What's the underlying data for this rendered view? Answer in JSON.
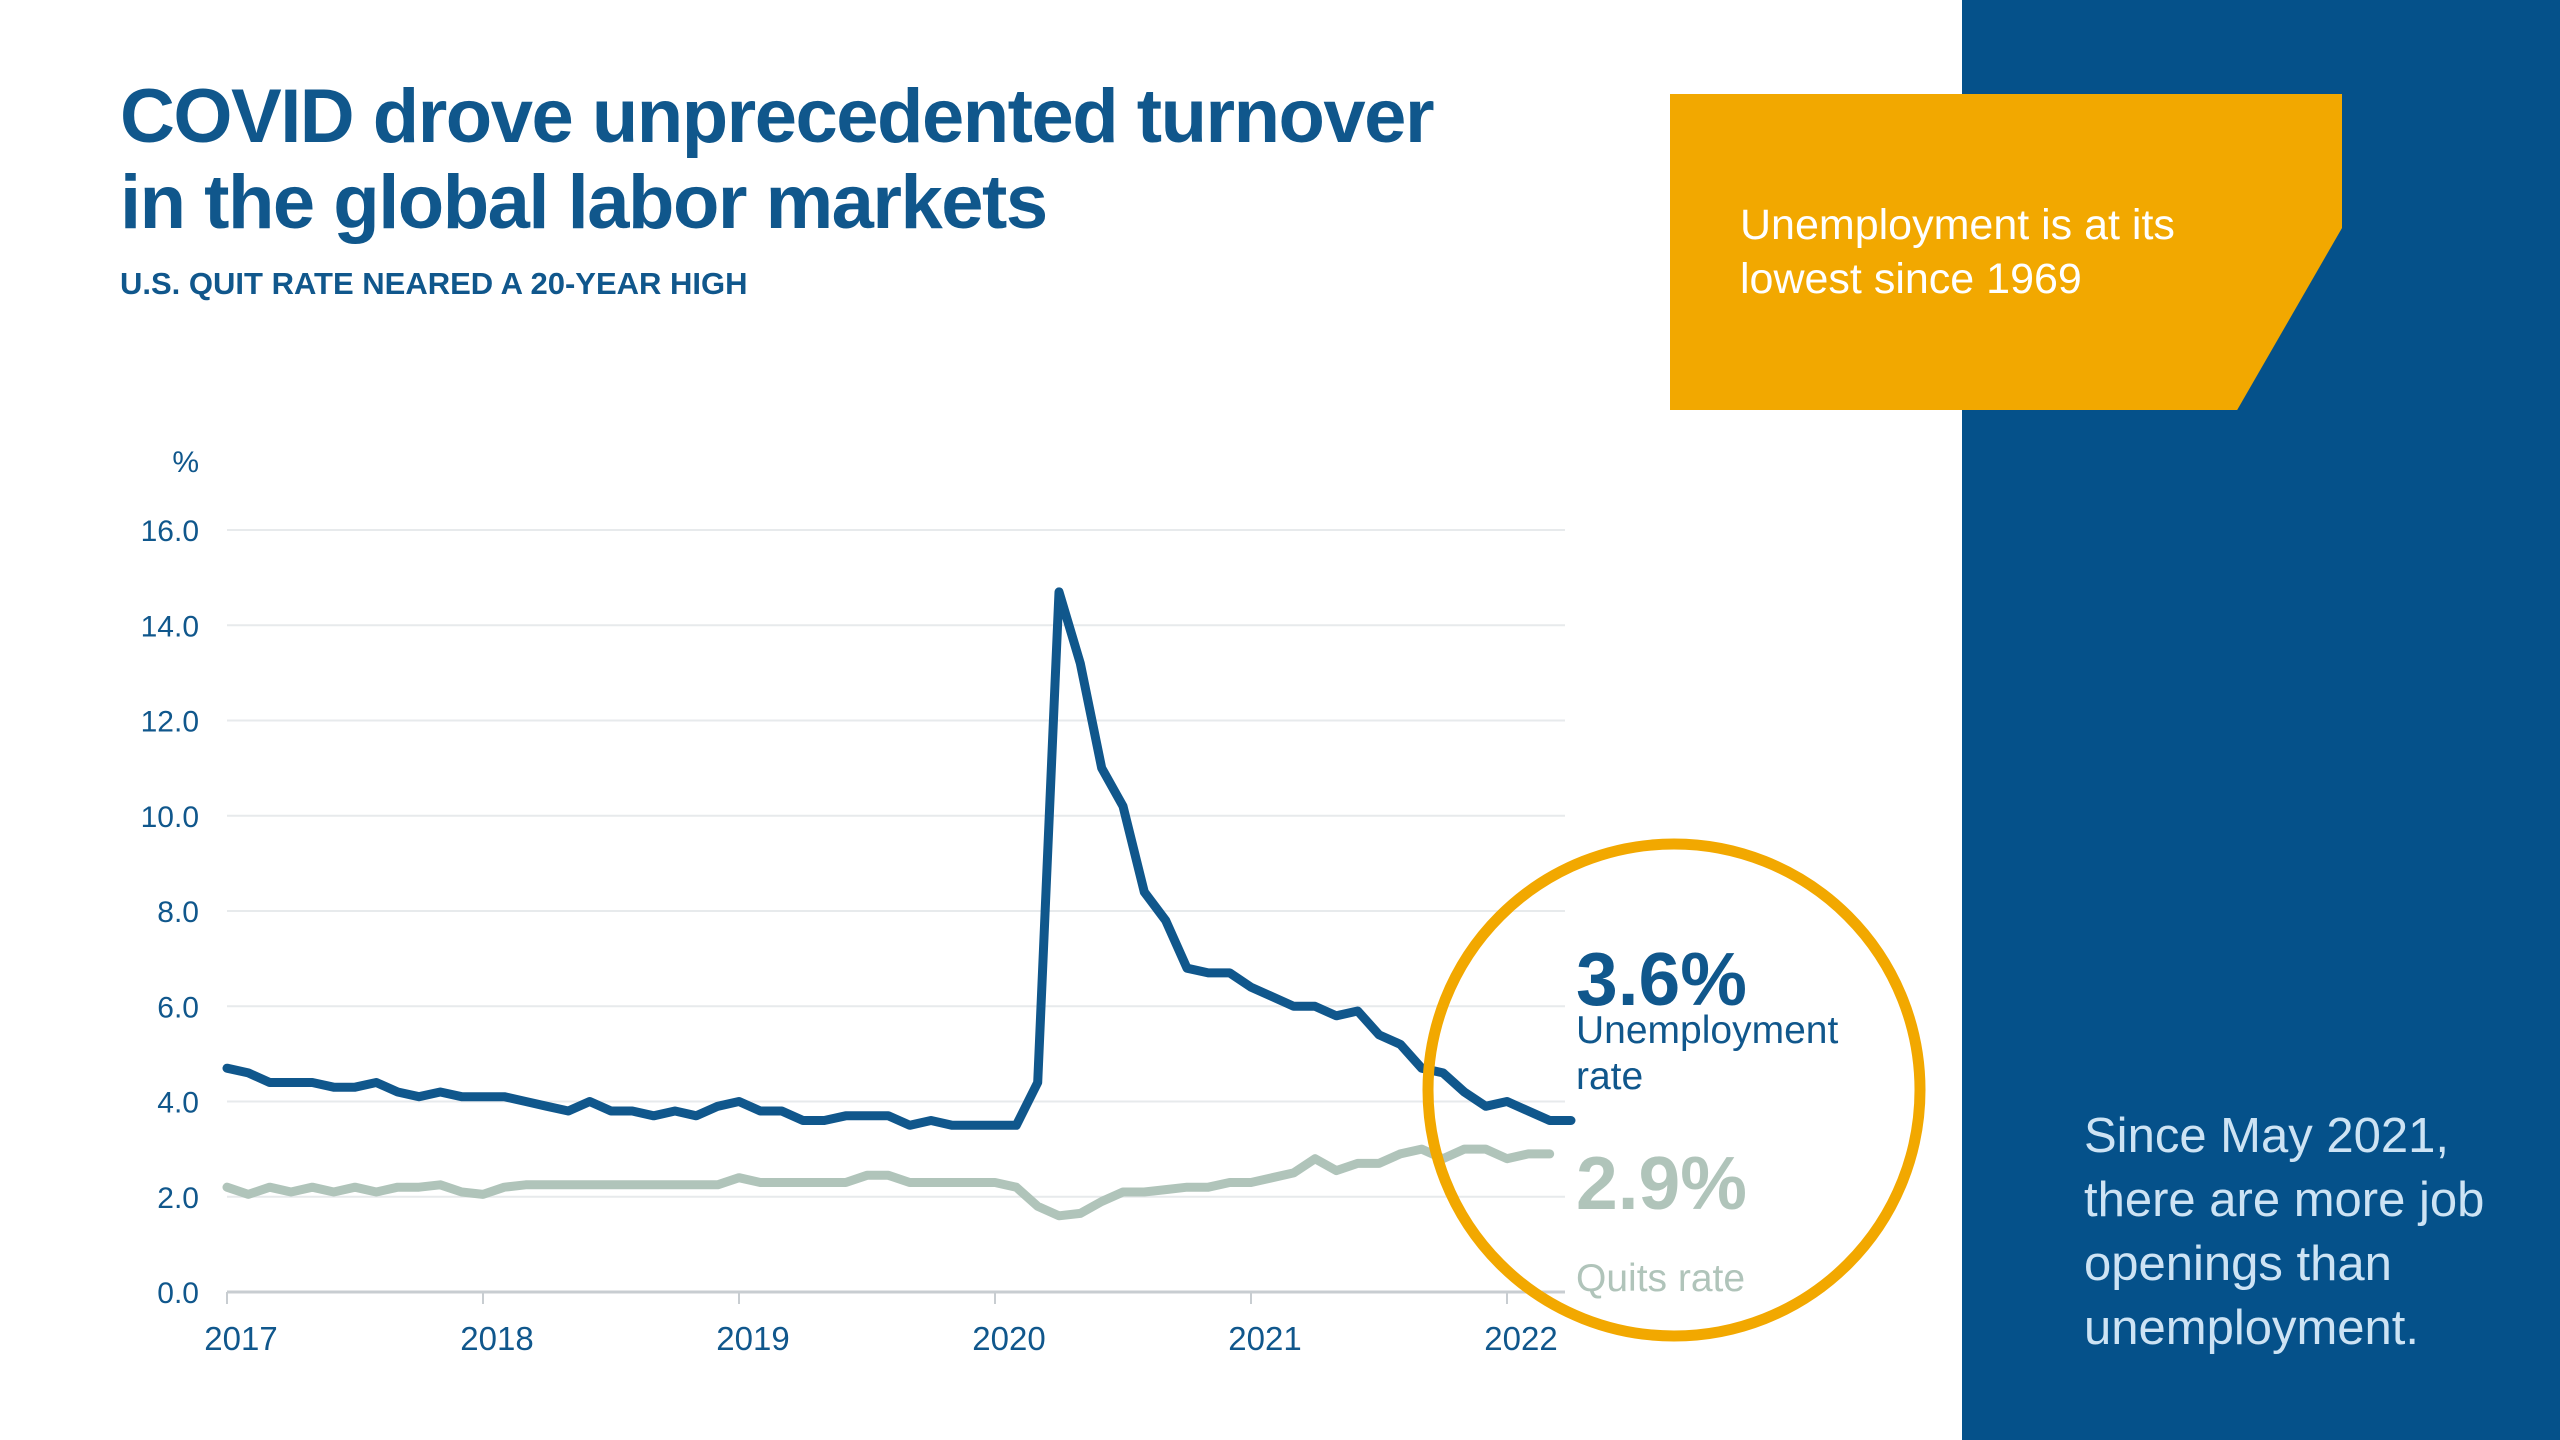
{
  "header": {
    "title_lines": [
      "COVID drove unprecedented turnover",
      "in the global labor markets"
    ],
    "subtitle": "U.S. QUIT RATE NEARED A 20-YEAR HIGH"
  },
  "callout_box": {
    "lines": [
      "Unemployment is at its",
      "lowest since 1969"
    ]
  },
  "sidebar_note": {
    "lines": [
      "Since May 2021,",
      "there are more job",
      "openings than",
      "unemployment."
    ]
  },
  "annotation_circle": {
    "unemployment_value": "3.6%",
    "unemployment_label_lines": [
      "Unemployment",
      "rate"
    ],
    "quits_value": "2.9%",
    "quits_label": "Quits rate"
  },
  "colors": {
    "brand_blue": "#10578C",
    "sidebar_blue": "#05518A",
    "accent_orange": "#F2A800",
    "quits_green_gray": "#B0C4BA",
    "gridline": "#E7EAEC",
    "axis_line": "#C8CDD1",
    "sidebar_text": "#CDE3F4",
    "callout_text": "#FFFFFF"
  },
  "chart_data": {
    "type": "line",
    "title": "U.S. QUIT RATE NEARED A 20-YEAR HIGH",
    "unit_label": "%",
    "grid": true,
    "legend_position": "annotated-circle-right",
    "ylim": [
      0,
      16
    ],
    "y_ticks": [
      "16.0",
      "14.0",
      "12.0",
      "10.0",
      "8.0",
      "6.0",
      "4.0",
      "2.0",
      "0.0"
    ],
    "x_ticks": [
      "2017",
      "2018",
      "2019",
      "2020",
      "2021",
      "2022"
    ],
    "x_start": "2017-01",
    "x_frequency": "monthly",
    "series": [
      {
        "name": "Unemployment rate",
        "end_label": "3.6%",
        "color": "#10578C",
        "values": [
          4.7,
          4.6,
          4.4,
          4.4,
          4.4,
          4.3,
          4.3,
          4.4,
          4.2,
          4.1,
          4.2,
          4.1,
          4.1,
          4.1,
          4.0,
          3.9,
          3.8,
          4.0,
          3.8,
          3.8,
          3.7,
          3.8,
          3.7,
          3.9,
          4.0,
          3.8,
          3.8,
          3.6,
          3.6,
          3.7,
          3.7,
          3.7,
          3.5,
          3.6,
          3.5,
          3.5,
          3.5,
          3.5,
          4.4,
          14.7,
          13.2,
          11.0,
          10.2,
          8.4,
          7.8,
          6.8,
          6.7,
          6.7,
          6.4,
          6.2,
          6.0,
          6.0,
          5.8,
          5.9,
          5.4,
          5.2,
          4.7,
          4.6,
          4.2,
          3.9,
          4.0,
          3.8,
          3.6,
          3.6
        ]
      },
      {
        "name": "Quits rate",
        "end_label": "2.9%",
        "color": "#B0C4BA",
        "values": [
          2.2,
          2.05,
          2.2,
          2.1,
          2.2,
          2.1,
          2.2,
          2.1,
          2.2,
          2.2,
          2.25,
          2.1,
          2.05,
          2.2,
          2.25,
          2.25,
          2.25,
          2.25,
          2.25,
          2.25,
          2.25,
          2.25,
          2.25,
          2.25,
          2.4,
          2.3,
          2.3,
          2.3,
          2.3,
          2.3,
          2.45,
          2.45,
          2.3,
          2.3,
          2.3,
          2.3,
          2.3,
          2.2,
          1.8,
          1.6,
          1.65,
          1.9,
          2.1,
          2.1,
          2.15,
          2.2,
          2.2,
          2.3,
          2.3,
          2.4,
          2.5,
          2.8,
          2.55,
          2.7,
          2.7,
          2.9,
          3.0,
          2.8,
          3.0,
          3.0,
          2.8,
          2.9,
          2.9
        ]
      }
    ]
  }
}
